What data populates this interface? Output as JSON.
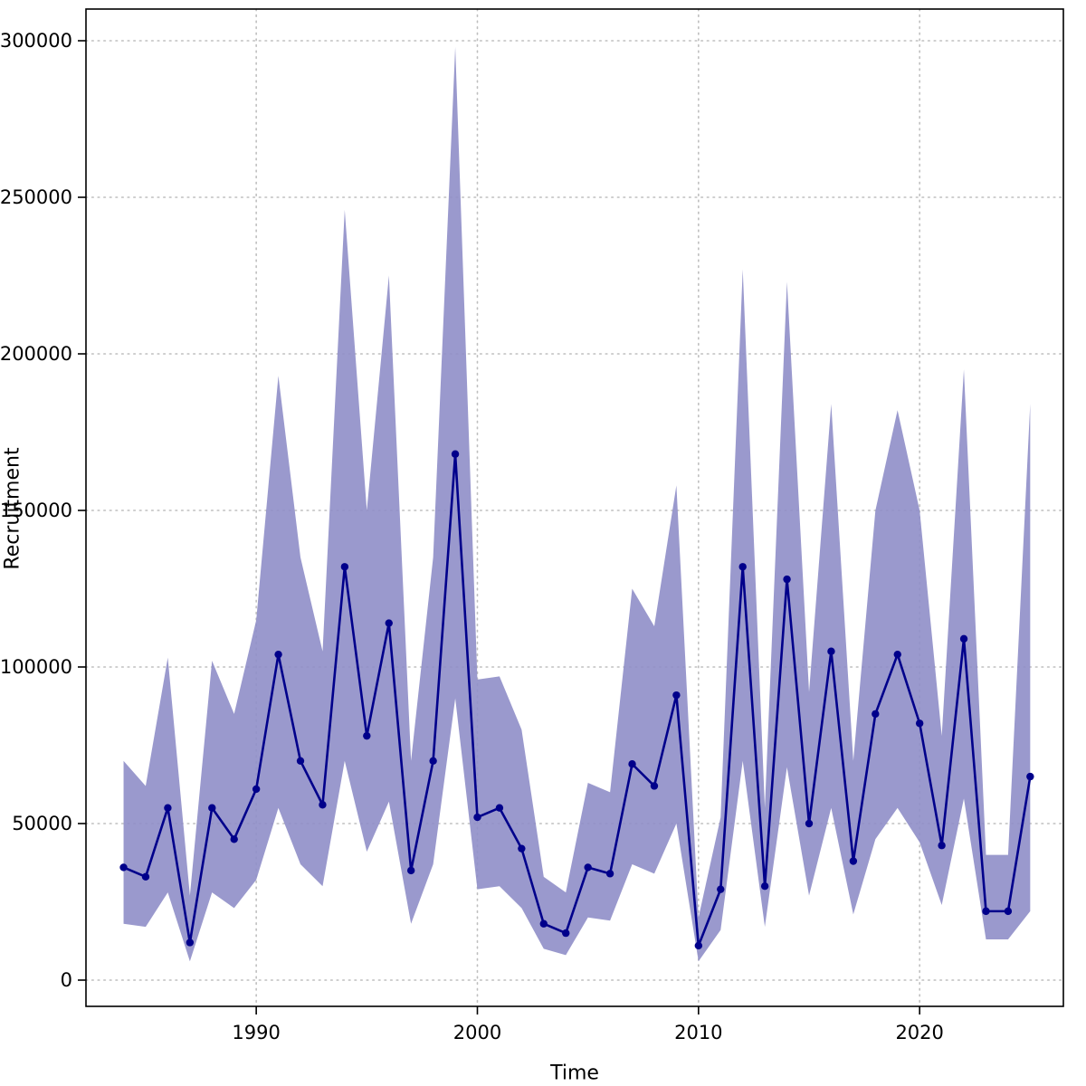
{
  "chart_data": {
    "type": "line",
    "title": "",
    "xlabel": "Time",
    "ylabel": "Recruitment",
    "xlim": [
      1982.3,
      2026.5
    ],
    "ylim": [
      0,
      300000
    ],
    "grid": true,
    "legend": "none",
    "grid_color": "#bfbfbf",
    "band_color": "#8f8ec8",
    "line_color": "#00008b",
    "xticks": [
      {
        "value": 1990,
        "label": "1990"
      },
      {
        "value": 2000,
        "label": "2000"
      },
      {
        "value": 2010,
        "label": "2010"
      },
      {
        "value": 2020,
        "label": "2020"
      }
    ],
    "yticks": [
      {
        "value": 0,
        "label": "0"
      },
      {
        "value": 50000,
        "label": "50000"
      },
      {
        "value": 100000,
        "label": "100000"
      },
      {
        "value": 150000,
        "label": "150000"
      },
      {
        "value": 200000,
        "label": "200000"
      },
      {
        "value": 250000,
        "label": "250000"
      },
      {
        "value": 300000,
        "label": "300000"
      }
    ],
    "years": [
      1984,
      1985,
      1986,
      1987,
      1988,
      1989,
      1990,
      1991,
      1992,
      1993,
      1994,
      1995,
      1996,
      1997,
      1998,
      1999,
      2000,
      2001,
      2002,
      2003,
      2004,
      2005,
      2006,
      2007,
      2008,
      2009,
      2010,
      2011,
      2012,
      2013,
      2014,
      2015,
      2016,
      2017,
      2018,
      2019,
      2020,
      2021,
      2022,
      2023,
      2024,
      2025
    ],
    "series": [
      {
        "name": "mean",
        "values": [
          36000,
          33000,
          55000,
          12000,
          55000,
          45000,
          61000,
          104000,
          70000,
          56000,
          132000,
          78000,
          114000,
          35000,
          70000,
          168000,
          52000,
          55000,
          42000,
          18000,
          15000,
          36000,
          34000,
          69000,
          62000,
          91000,
          11000,
          29000,
          132000,
          30000,
          128000,
          50000,
          105000,
          38000,
          85000,
          104000,
          82000,
          43000,
          109000,
          22000,
          22000,
          65000
        ]
      },
      {
        "name": "lower_ci",
        "values": [
          18000,
          17000,
          28000,
          6000,
          28000,
          23000,
          32000,
          55000,
          37000,
          30000,
          70000,
          41000,
          57000,
          18000,
          37000,
          90000,
          29000,
          30000,
          23000,
          10000,
          8000,
          20000,
          19000,
          37000,
          34000,
          50000,
          6000,
          16000,
          70000,
          17000,
          68000,
          27000,
          55000,
          21000,
          45000,
          55000,
          44000,
          24000,
          58000,
          13000,
          13000,
          22000
        ]
      },
      {
        "name": "upper_ci",
        "values": [
          70000,
          62000,
          103000,
          27000,
          102000,
          85000,
          115000,
          193000,
          135000,
          105000,
          246000,
          150000,
          225000,
          70000,
          135000,
          298000,
          96000,
          97000,
          80000,
          33000,
          28000,
          63000,
          60000,
          125000,
          113000,
          158000,
          20000,
          52000,
          227000,
          55000,
          223000,
          92000,
          184000,
          70000,
          150000,
          182000,
          150000,
          78000,
          195000,
          40000,
          40000,
          184000
        ]
      }
    ]
  }
}
